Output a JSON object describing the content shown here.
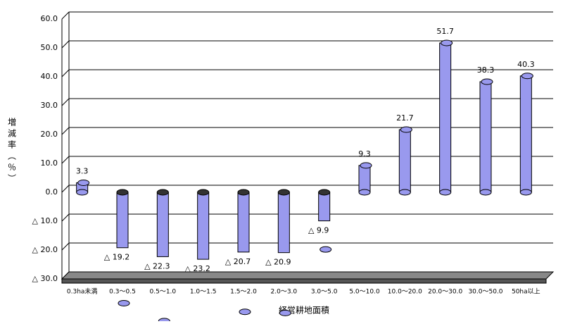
{
  "chart_data": {
    "type": "bar",
    "y_label": "増減率（％）",
    "x_label": "経営耕地面積",
    "categories": [
      "0.3ha未満",
      "0.3～0.5",
      "0.5～1.0",
      "1.0～1.5",
      "1.5～2.0",
      "2.0～3.0",
      "3.0～5.0",
      "5.0～10.0",
      "10.0～20.0",
      "20.0～30.0",
      "30.0～50.0",
      "50ha以上"
    ],
    "values": [
      3.3,
      -19.2,
      -22.3,
      -23.2,
      -20.7,
      -20.9,
      -9.9,
      9.3,
      21.7,
      51.7,
      38.3,
      40.3
    ],
    "value_labels": [
      "3.3",
      "△ 19.2",
      "△ 22.3",
      "△ 23.2",
      "△ 20.7",
      "△ 20.9",
      "△ 9.9",
      "9.3",
      "21.7",
      "51.7",
      "38.3",
      "40.3"
    ],
    "color": "#9999ee",
    "ylim": [
      -30,
      60
    ],
    "yticks": [
      {
        "value": -30,
        "label": "△ 30.0"
      },
      {
        "value": -20,
        "label": "△ 20.0"
      },
      {
        "value": -10,
        "label": "△ 10.0"
      },
      {
        "value": 0,
        "label": "0.0"
      },
      {
        "value": 10,
        "label": "10.0"
      },
      {
        "value": 20,
        "label": "20.0"
      },
      {
        "value": 30,
        "label": "30.0"
      },
      {
        "value": 40,
        "label": "40.0"
      },
      {
        "value": 50,
        "label": "50.0"
      },
      {
        "value": 60,
        "label": "60.0"
      }
    ],
    "grid": true
  }
}
